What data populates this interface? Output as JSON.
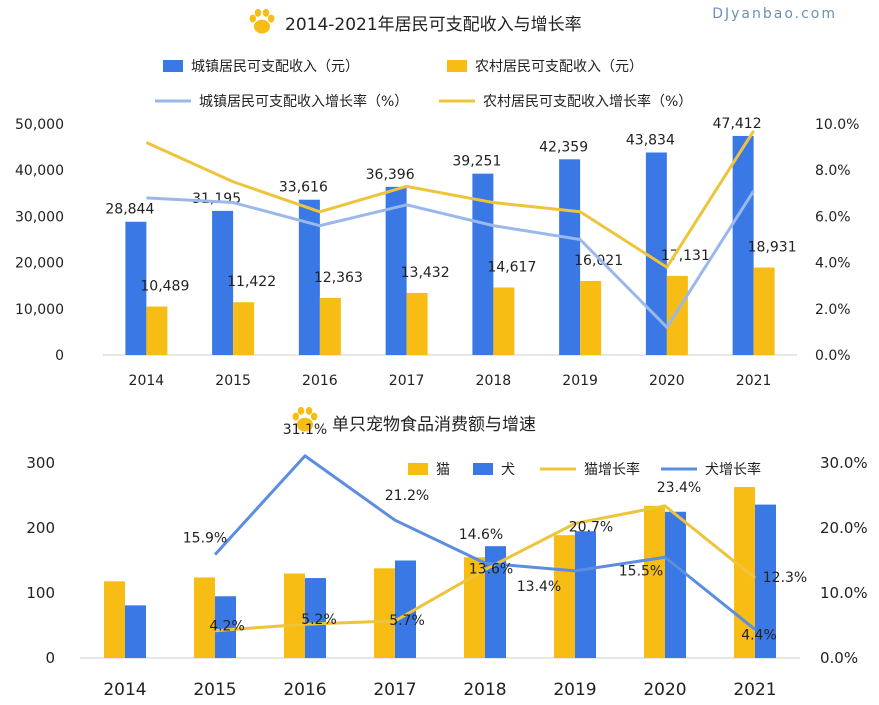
{
  "watermark": "DJyanbao.com",
  "paw_icon": "paw-icon",
  "colors": {
    "urban_bar": "#3a78e6",
    "rural_bar": "#f8bd14",
    "urban_line": "#9ab9ea",
    "rural_line": "#edc43a",
    "cat_bar": "#f8bd14",
    "dog_bar": "#3a78e6",
    "cat_line": "#edc43a",
    "dog_line": "#5b8de0",
    "axis": "#cfcfcf",
    "text": "#222222"
  },
  "chart_data": [
    {
      "type": "bar",
      "title": "2014-2021年居民可支配收入与增长率",
      "categories": [
        "2014",
        "2015",
        "2016",
        "2017",
        "2018",
        "2019",
        "2020",
        "2021"
      ],
      "series": [
        {
          "name": "城镇居民可支配收入（元）",
          "kind": "bar",
          "axis": "left",
          "values": [
            28844,
            31195,
            33616,
            36396,
            39251,
            42359,
            43834,
            47412
          ],
          "labels": [
            "28,844",
            "31,195",
            "33,616",
            "36,396",
            "39,251",
            "42,359",
            "43,834",
            "47,412"
          ]
        },
        {
          "name": "农村居民可支配收入（元）",
          "kind": "bar",
          "axis": "left",
          "values": [
            10489,
            11422,
            12363,
            13432,
            14617,
            16021,
            17131,
            18931
          ],
          "labels": [
            "10,489",
            "11,422",
            "12,363",
            "13,432",
            "14,617",
            "16,021",
            "17,131",
            "18,931"
          ]
        },
        {
          "name": "城镇居民可支配收入增长率（%）",
          "kind": "line",
          "axis": "right",
          "values": [
            6.8,
            6.6,
            5.6,
            6.5,
            5.6,
            5.0,
            1.2,
            7.1
          ]
        },
        {
          "name": "农村居民可支配收入增长率（%）",
          "kind": "line",
          "axis": "right",
          "values": [
            9.2,
            7.5,
            6.2,
            7.3,
            6.6,
            6.2,
            3.8,
            9.7
          ]
        }
      ],
      "yleft": {
        "min": 0,
        "max": 50000,
        "ticks": [
          "0",
          "10,000",
          "20,000",
          "30,000",
          "40,000",
          "50,000"
        ]
      },
      "yright": {
        "min": 0,
        "max": 10,
        "ticks": [
          "0.0%",
          "2.0%",
          "4.0%",
          "6.0%",
          "8.0%",
          "10.0%"
        ]
      }
    },
    {
      "type": "bar",
      "title": "单只宠物食品消费额与增速",
      "categories": [
        "2014",
        "2015",
        "2016",
        "2017",
        "2018",
        "2019",
        "2020",
        "2021"
      ],
      "series": [
        {
          "name": "猫",
          "kind": "bar",
          "axis": "left",
          "values": [
            118,
            124,
            130,
            138,
            155,
            189,
            234,
            263
          ]
        },
        {
          "name": "犬",
          "kind": "bar",
          "axis": "left",
          "values": [
            81,
            95,
            123,
            150,
            172,
            195,
            225,
            236
          ]
        },
        {
          "name": "猫增长率",
          "kind": "line",
          "axis": "right",
          "values": [
            null,
            4.2,
            5.2,
            5.7,
            13.6,
            20.7,
            23.4,
            12.3
          ],
          "labels": [
            "",
            "4.2%",
            "5.2%",
            "5.7%",
            "13.6%",
            "20.7%",
            "23.4%",
            "12.3%"
          ]
        },
        {
          "name": "犬增长率",
          "kind": "line",
          "axis": "right",
          "values": [
            null,
            15.9,
            31.1,
            21.2,
            14.6,
            13.4,
            15.5,
            4.4
          ],
          "labels": [
            "",
            "15.9%",
            "31.1%",
            "21.2%",
            "14.6%",
            "13.4%",
            "15.5%",
            "4.4%"
          ]
        }
      ],
      "yleft": {
        "min": 0,
        "max": 300,
        "ticks": [
          "0",
          "100",
          "200",
          "300"
        ]
      },
      "yright": {
        "min": 0,
        "max": 30,
        "ticks": [
          "0.0%",
          "10.0%",
          "20.0%",
          "30.0%"
        ]
      }
    }
  ]
}
